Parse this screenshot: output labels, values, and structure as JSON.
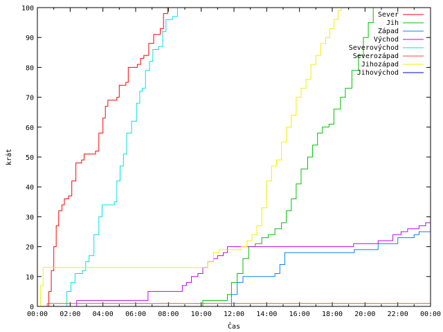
{
  "chart_data": {
    "type": "line",
    "xlabel": "Čas",
    "ylabel": "krát",
    "xlim": [
      0,
      24
    ],
    "ylim": [
      0,
      100
    ],
    "x_ticks": [
      "00:00",
      "02:00",
      "04:00",
      "06:00",
      "08:00",
      "10:00",
      "12:00",
      "14:00",
      "16:00",
      "18:00",
      "20:00",
      "22:00",
      "00:00"
    ],
    "y_ticks": [
      "0",
      "10",
      "20",
      "30",
      "40",
      "50",
      "60",
      "70",
      "80",
      "90",
      "100"
    ],
    "legend_position": "top-right",
    "series": [
      {
        "name": "Sever",
        "color": "#ff0000",
        "points": [
          [
            0.55,
            0
          ],
          [
            0.7,
            5
          ],
          [
            0.85,
            12
          ],
          [
            1.0,
            20
          ],
          [
            1.15,
            27
          ],
          [
            1.3,
            32
          ],
          [
            1.5,
            34
          ],
          [
            1.65,
            36
          ],
          [
            1.9,
            37
          ],
          [
            2.1,
            42
          ],
          [
            2.35,
            48
          ],
          [
            2.7,
            49
          ],
          [
            2.85,
            51
          ],
          [
            3.55,
            52
          ],
          [
            3.75,
            58
          ],
          [
            4.0,
            63
          ],
          [
            4.15,
            67
          ],
          [
            4.3,
            69
          ],
          [
            4.85,
            70
          ],
          [
            5.0,
            74
          ],
          [
            5.4,
            75
          ],
          [
            5.55,
            80
          ],
          [
            6.1,
            81
          ],
          [
            6.3,
            83
          ],
          [
            6.5,
            84
          ],
          [
            6.8,
            88
          ],
          [
            7.1,
            91
          ],
          [
            7.5,
            93
          ],
          [
            7.7,
            98
          ],
          [
            7.95,
            100
          ]
        ]
      },
      {
        "name": "Jih",
        "color": "#00c000",
        "points": [
          [
            9.85,
            0
          ],
          [
            10.1,
            2
          ],
          [
            11.35,
            2
          ],
          [
            11.6,
            4
          ],
          [
            11.85,
            8
          ],
          [
            12.2,
            11
          ],
          [
            12.55,
            16
          ],
          [
            12.9,
            20
          ],
          [
            13.3,
            21
          ],
          [
            13.7,
            23
          ],
          [
            14.1,
            24
          ],
          [
            14.5,
            26
          ],
          [
            14.9,
            28
          ],
          [
            15.2,
            32
          ],
          [
            15.5,
            36
          ],
          [
            15.8,
            41
          ],
          [
            16.1,
            46
          ],
          [
            16.5,
            50
          ],
          [
            16.8,
            54
          ],
          [
            17.1,
            58
          ],
          [
            17.4,
            60
          ],
          [
            17.8,
            61
          ],
          [
            18.1,
            66
          ],
          [
            18.5,
            70
          ],
          [
            18.8,
            73
          ],
          [
            19.2,
            79
          ],
          [
            19.6,
            84
          ],
          [
            19.9,
            90
          ],
          [
            20.2,
            95
          ],
          [
            20.5,
            100
          ]
        ]
      },
      {
        "name": "Západ",
        "color": "#0080ff",
        "points": [
          [
            11.6,
            0
          ],
          [
            11.85,
            4
          ],
          [
            12.2,
            8
          ],
          [
            12.55,
            10
          ],
          [
            14.5,
            11
          ],
          [
            14.8,
            14
          ],
          [
            15.1,
            18
          ],
          [
            19.2,
            18
          ],
          [
            19.35,
            19
          ],
          [
            20.8,
            21
          ],
          [
            22.0,
            23
          ],
          [
            23.0,
            24
          ],
          [
            23.3,
            25
          ],
          [
            24.0,
            25
          ]
        ]
      },
      {
        "name": "Východ",
        "color": "#c000ff",
        "points": [
          [
            2.3,
            0
          ],
          [
            2.4,
            2
          ],
          [
            6.6,
            2
          ],
          [
            6.75,
            5
          ],
          [
            8.7,
            5
          ],
          [
            8.85,
            7
          ],
          [
            9.1,
            8
          ],
          [
            9.4,
            10
          ],
          [
            9.8,
            11
          ],
          [
            10.1,
            13
          ],
          [
            10.4,
            15
          ],
          [
            10.75,
            16
          ],
          [
            11.0,
            17
          ],
          [
            11.35,
            18
          ],
          [
            11.6,
            20
          ],
          [
            19.1,
            20
          ],
          [
            19.3,
            21
          ],
          [
            20.8,
            22
          ],
          [
            21.7,
            24
          ],
          [
            22.2,
            25
          ],
          [
            22.6,
            26
          ],
          [
            23.3,
            27
          ],
          [
            23.7,
            28
          ],
          [
            24.0,
            28
          ]
        ]
      },
      {
        "name": "Severovýchod",
        "color": "#00e0e0",
        "points": [
          [
            1.65,
            0
          ],
          [
            1.8,
            5
          ],
          [
            2.05,
            8
          ],
          [
            2.3,
            11
          ],
          [
            2.75,
            12
          ],
          [
            2.95,
            15
          ],
          [
            3.15,
            17
          ],
          [
            3.45,
            24
          ],
          [
            3.75,
            30
          ],
          [
            3.95,
            34
          ],
          [
            4.7,
            35
          ],
          [
            4.85,
            42
          ],
          [
            5.05,
            47
          ],
          [
            5.25,
            51
          ],
          [
            5.45,
            58
          ],
          [
            5.75,
            62
          ],
          [
            6.05,
            68
          ],
          [
            6.25,
            72
          ],
          [
            6.4,
            73
          ],
          [
            6.6,
            79
          ],
          [
            6.85,
            82
          ],
          [
            7.05,
            86
          ],
          [
            7.4,
            87
          ],
          [
            7.65,
            92
          ],
          [
            7.85,
            96
          ],
          [
            8.25,
            97
          ],
          [
            8.55,
            100
          ]
        ]
      },
      {
        "name": "Severozápad",
        "color": "#ff4040",
        "points": [
          [
            0.45,
            0
          ],
          [
            0.6,
            1
          ],
          [
            24.0,
            1
          ]
        ]
      },
      {
        "name": "Jihozápad",
        "color": "#f0f000",
        "points": [
          [
            0.05,
            0
          ],
          [
            0.2,
            7
          ],
          [
            0.35,
            13
          ],
          [
            10.05,
            13
          ],
          [
            10.4,
            15
          ],
          [
            10.75,
            18
          ],
          [
            11.1,
            19
          ],
          [
            12.0,
            19
          ],
          [
            12.45,
            20
          ],
          [
            12.8,
            22
          ],
          [
            13.1,
            24
          ],
          [
            13.4,
            27
          ],
          [
            13.7,
            33
          ],
          [
            14.0,
            42
          ],
          [
            14.3,
            47
          ],
          [
            14.6,
            49
          ],
          [
            14.9,
            55
          ],
          [
            15.2,
            60
          ],
          [
            15.5,
            64
          ],
          [
            15.8,
            70
          ],
          [
            16.1,
            73
          ],
          [
            16.4,
            76
          ],
          [
            16.7,
            81
          ],
          [
            17.0,
            84
          ],
          [
            17.3,
            88
          ],
          [
            17.6,
            90
          ],
          [
            17.85,
            93
          ],
          [
            18.1,
            96
          ],
          [
            18.35,
            99
          ],
          [
            18.55,
            100
          ]
        ]
      },
      {
        "name": "Jihovýchod",
        "color": "#0000d0",
        "points": []
      }
    ]
  }
}
